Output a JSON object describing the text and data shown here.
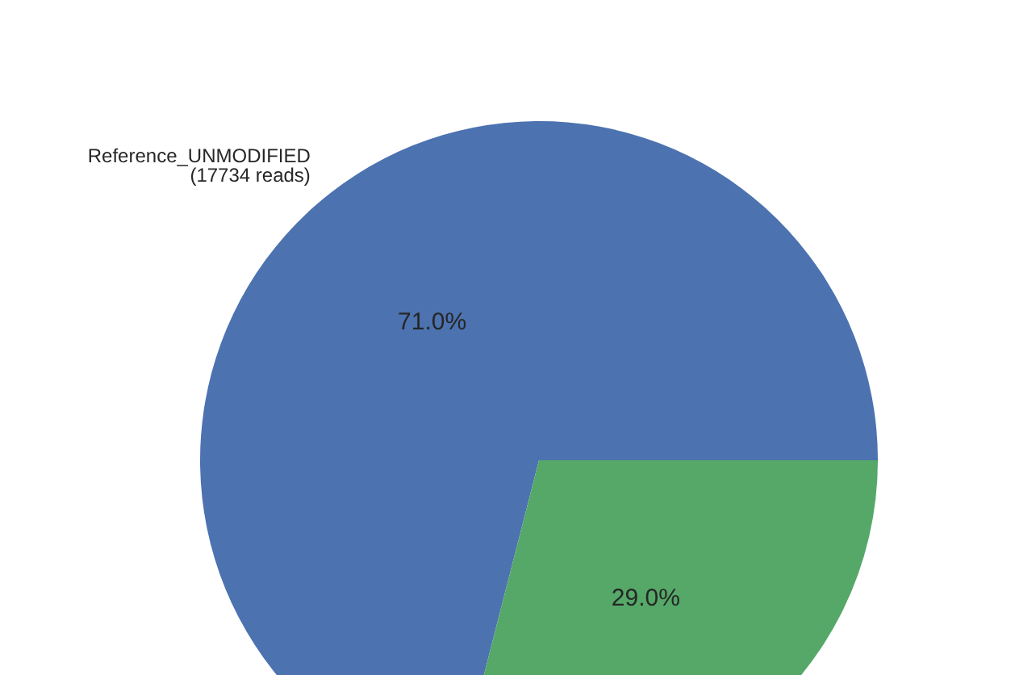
{
  "chart_data": {
    "type": "pie",
    "categories": [
      "Reference_UNMODIFIED\n(17734 reads)",
      null
    ],
    "values": [
      71.0,
      29.0
    ],
    "colors": [
      "#4c72b0",
      "#55a868"
    ],
    "value_labels": [
      "71.0%",
      "29.0%"
    ]
  }
}
